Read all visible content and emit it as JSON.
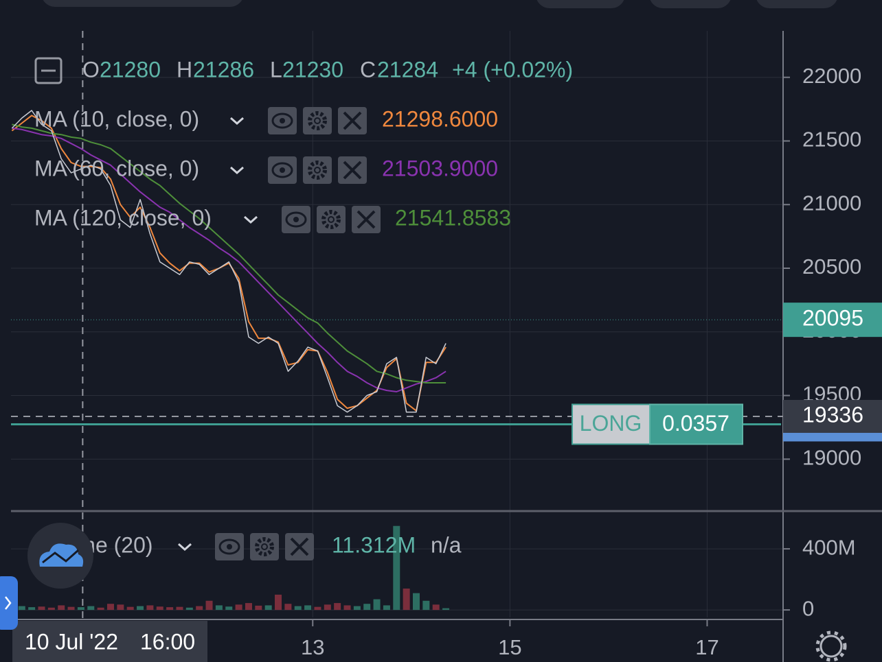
{
  "chart_data": {
    "type": "line",
    "x": [
      9.95,
      10.05,
      10.15,
      10.25,
      10.35,
      10.45,
      10.55,
      10.65,
      10.75,
      10.85,
      10.95,
      11.05,
      11.15,
      11.25,
      11.35,
      11.45,
      11.55,
      11.65,
      11.75,
      11.85,
      11.95,
      12.05,
      12.15,
      12.25,
      12.35,
      12.45,
      12.55,
      12.65,
      12.75,
      12.85,
      12.95,
      13.05,
      13.15,
      13.25,
      13.35,
      13.45,
      13.55,
      13.65,
      13.75,
      13.85,
      13.95,
      14.05,
      14.15,
      14.25,
      14.35
    ],
    "values": [
      21600,
      21680,
      21740,
      21630,
      21580,
      21360,
      21250,
      21280,
      21310,
      21280,
      21150,
      20880,
      20820,
      21040,
      20770,
      20550,
      20500,
      20450,
      20550,
      20530,
      20450,
      20500,
      20550,
      20390,
      19960,
      19910,
      19960,
      19910,
      19690,
      19770,
      19880,
      19850,
      19640,
      19420,
      19370,
      19420,
      19500,
      19530,
      19750,
      19800,
      19370,
      19370,
      19800,
      19750,
      19910
    ],
    "color": "#c9ccd4",
    "series": [
      {
        "name": "MA (10, close, 0)",
        "color": "#f0883e",
        "legend_value": {
          "value": 21298.6,
          "label": "21298.6000"
        },
        "values": [
          21580,
          21640,
          21700,
          21660,
          21600,
          21440,
          21330,
          21300,
          21300,
          21290,
          21200,
          21000,
          20900,
          20980,
          20820,
          20620,
          20540,
          20480,
          20540,
          20540,
          20470,
          20500,
          20540,
          20420,
          20080,
          19950,
          19950,
          19920,
          19740,
          19760,
          19860,
          19850,
          19680,
          19470,
          19400,
          19420,
          19480,
          19540,
          19720,
          19790,
          19440,
          19380,
          19760,
          19760,
          19880
        ]
      },
      {
        "name": "MA (60, close, 0)",
        "color": "#8a33b0",
        "legend_value": {
          "value": 21503.9,
          "label": "21503.9000"
        },
        "values": [
          21600,
          21590,
          21570,
          21550,
          21540,
          21520,
          21480,
          21440,
          21390,
          21350,
          21310,
          21240,
          21170,
          21100,
          21040,
          20980,
          20940,
          20880,
          20820,
          20770,
          20720,
          20660,
          20610,
          20550,
          20470,
          20390,
          20310,
          20230,
          20150,
          20070,
          19990,
          19910,
          19840,
          19760,
          19690,
          19650,
          19600,
          19560,
          19540,
          19530,
          19560,
          19590,
          19610,
          19640,
          19690
        ]
      },
      {
        "name": "MA (120, close, 0)",
        "color": "#4e8f3a",
        "legend_value": {
          "value": 21541.8583,
          "label": "21541.8583"
        },
        "values": [
          21630,
          21610,
          21600,
          21580,
          21560,
          21550,
          21530,
          21520,
          21490,
          21470,
          21440,
          21380,
          21320,
          21260,
          21200,
          21150,
          21080,
          21010,
          20950,
          20890,
          20820,
          20750,
          20680,
          20610,
          20530,
          20450,
          20370,
          20290,
          20230,
          20170,
          20110,
          20070,
          19990,
          19920,
          19850,
          19800,
          19750,
          19690,
          19670,
          19640,
          19620,
          19610,
          19600,
          19600,
          19600
        ]
      }
    ],
    "xlim": [
      9.94,
      17.77
    ],
    "xticks": [
      13,
      15,
      17
    ],
    "ylim": [
      18592,
      22365
    ],
    "yticks": [
      19000,
      19500,
      20000,
      20500,
      21000,
      21500,
      22000
    ],
    "grid": true,
    "ohlc": [
      {
        "key": "O",
        "value": 21280
      },
      {
        "key": "H",
        "value": 21286
      },
      {
        "key": "L",
        "value": 21230
      },
      {
        "key": "C",
        "value": 21284
      }
    ],
    "change_label": "+4 (+0.02%)",
    "last_price": 20095,
    "last_price_color": "#3f9e92",
    "crosshair": {
      "x": 10.667,
      "date_label": "10 Jul '22",
      "time_label": "16:00",
      "price": 19336
    },
    "position": {
      "side": "LONG",
      "quantity": 0.0357,
      "price": 19274,
      "color": "#3f9e92"
    },
    "volume": {
      "title": "Volume (20)",
      "last": {
        "value": 11312000,
        "label": "11.312M"
      },
      "na": "n/a",
      "up_color": "#2d6e62",
      "down_color": "#7a2e3c",
      "values": [
        20000000,
        25000000,
        18000000,
        22000000,
        15000000,
        30000000,
        20000000,
        18000000,
        25000000,
        15000000,
        40000000,
        35000000,
        20000000,
        25000000,
        30000000,
        22000000,
        18000000,
        20000000,
        15000000,
        25000000,
        60000000,
        30000000,
        22000000,
        35000000,
        45000000,
        28000000,
        30000000,
        100000000,
        40000000,
        25000000,
        30000000,
        20000000,
        35000000,
        45000000,
        30000000,
        25000000,
        40000000,
        70000000,
        30000000,
        550000000,
        140000000,
        110000000,
        60000000,
        35000000,
        11312000
      ],
      "ylim": [
        -49000000,
        580000000
      ],
      "yticks": [
        0,
        {
          "value": 400000000,
          "label": "400M"
        }
      ]
    }
  }
}
